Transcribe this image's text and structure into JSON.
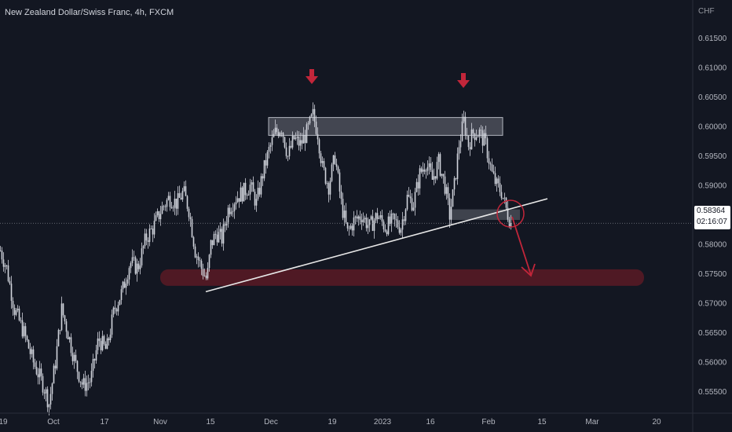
{
  "chart_title": "New Zealand Dollar/Swiss Franc, 4h, FXCM",
  "currency_label": "CHF",
  "last_price": "0.58364",
  "countdown": "02:16:07",
  "colors": {
    "background": "#131722",
    "candle": "#d1d4dc",
    "zone_grey": "#5d606b",
    "zone_red": "#5a1a24",
    "accent_red": "#c2263a",
    "trendline": "#e8e8e8"
  },
  "chart_data": {
    "type": "candlestick",
    "title": "New Zealand Dollar/Swiss Franc, 4h, FXCM",
    "ylabel": "CHF",
    "ylim": [
      0.5495,
      0.6205
    ],
    "yticks": [
      "0.61500",
      "0.61000",
      "0.60500",
      "0.60000",
      "0.59500",
      "0.59000",
      "0.58500",
      "0.58000",
      "0.57500",
      "0.57000",
      "0.56500",
      "0.56000",
      "0.55500"
    ],
    "xticks": [
      "19",
      "Oct",
      "17",
      "Nov",
      "15",
      "Dec",
      "19",
      "2023",
      "16",
      "Feb",
      "15",
      "Mar",
      "20"
    ],
    "price_path": [
      [
        0,
        0.579
      ],
      [
        8,
        0.576
      ],
      [
        18,
        0.569
      ],
      [
        30,
        0.565
      ],
      [
        42,
        0.56
      ],
      [
        55,
        0.556
      ],
      [
        62,
        0.553
      ],
      [
        70,
        0.56
      ],
      [
        78,
        0.569
      ],
      [
        86,
        0.565
      ],
      [
        95,
        0.56
      ],
      [
        105,
        0.556
      ],
      [
        115,
        0.557
      ],
      [
        125,
        0.564
      ],
      [
        135,
        0.562
      ],
      [
        145,
        0.569
      ],
      [
        155,
        0.572
      ],
      [
        165,
        0.577
      ],
      [
        175,
        0.576
      ],
      [
        185,
        0.581
      ],
      [
        195,
        0.583
      ],
      [
        205,
        0.586
      ],
      [
        215,
        0.588
      ],
      [
        225,
        0.587
      ],
      [
        233,
        0.589
      ],
      [
        240,
        0.586
      ],
      [
        248,
        0.579
      ],
      [
        256,
        0.576
      ],
      [
        263,
        0.574
      ],
      [
        268,
        0.58
      ],
      [
        275,
        0.582
      ],
      [
        282,
        0.581
      ],
      [
        290,
        0.586
      ],
      [
        300,
        0.588
      ],
      [
        310,
        0.589
      ],
      [
        318,
        0.59
      ],
      [
        326,
        0.587
      ],
      [
        334,
        0.592
      ],
      [
        342,
        0.596
      ],
      [
        350,
        0.599
      ],
      [
        358,
        0.6
      ],
      [
        366,
        0.595
      ],
      [
        374,
        0.598
      ],
      [
        382,
        0.597
      ],
      [
        390,
        0.599
      ],
      [
        398,
        0.602
      ],
      [
        404,
        0.599
      ],
      [
        410,
        0.593
      ],
      [
        418,
        0.59
      ],
      [
        426,
        0.595
      ],
      [
        434,
        0.587
      ],
      [
        442,
        0.582
      ],
      [
        450,
        0.584
      ],
      [
        460,
        0.585
      ],
      [
        470,
        0.583
      ],
      [
        480,
        0.585
      ],
      [
        490,
        0.583
      ],
      [
        500,
        0.584
      ],
      [
        510,
        0.583
      ],
      [
        518,
        0.588
      ],
      [
        526,
        0.587
      ],
      [
        534,
        0.592
      ],
      [
        542,
        0.594
      ],
      [
        550,
        0.591
      ],
      [
        558,
        0.594
      ],
      [
        566,
        0.59
      ],
      [
        572,
        0.585
      ],
      [
        578,
        0.59
      ],
      [
        584,
        0.597
      ],
      [
        590,
        0.601
      ],
      [
        596,
        0.597
      ],
      [
        602,
        0.599
      ],
      [
        610,
        0.599
      ],
      [
        618,
        0.597
      ],
      [
        626,
        0.592
      ],
      [
        632,
        0.59
      ],
      [
        638,
        0.589
      ],
      [
        644,
        0.586
      ],
      [
        650,
        0.5836
      ]
    ],
    "annotations": {
      "resistance_zone": [
        0.6,
        0.5983
      ],
      "neckline_box": [
        0.586,
        0.5842
      ],
      "support_zone": [
        0.5758,
        0.573
      ],
      "trendline": {
        "x_start": "Nov 15",
        "y_start": 0.572,
        "y_end": 0.5878
      },
      "down_arrows": 2,
      "target_arrow": true
    },
    "grid": false
  }
}
